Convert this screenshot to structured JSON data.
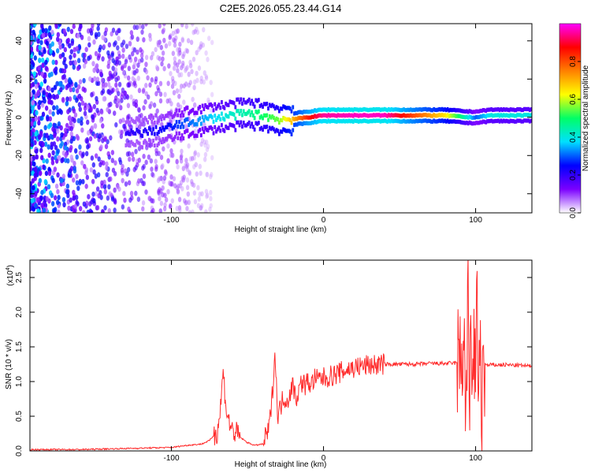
{
  "chart_data": [
    {
      "type": "heatmap",
      "title": "C2E5.2026.055.23.44.G14",
      "xlabel": "Height of straight line (km)",
      "ylabel": "Frequency (Hz)",
      "xlim": [
        -193,
        137
      ],
      "ylim": [
        -50,
        49
      ],
      "xticks": [
        -100,
        0,
        100
      ],
      "xtick_labels": [
        "-100",
        "0",
        "100"
      ],
      "yticks": [
        -40,
        -20,
        0,
        20,
        40
      ],
      "ytick_labels": [
        "-40",
        "-20",
        "0",
        "20",
        "40"
      ],
      "colorbar": {
        "label": "Normalized spectral amplitude",
        "range": [
          0,
          1
        ],
        "ticks": [
          0.0,
          0.2,
          0.4,
          0.6,
          0.8
        ],
        "tick_labels": [
          "0.0",
          "0.2",
          "0.4",
          "0.6",
          "0.8"
        ],
        "colors": [
          "#ffffff",
          "#7b00ff",
          "#0000ff",
          "#00e0ff",
          "#00ff66",
          "#ffff00",
          "#ff8000",
          "#ff0000",
          "#ff00ff"
        ]
      },
      "trace_center_hz": {
        "x": [
          -130,
          -110,
          -90,
          -70,
          -60,
          -50,
          -40,
          -30,
          -20,
          -10,
          0,
          20,
          40,
          60,
          80,
          95,
          100,
          110,
          137
        ],
        "y": [
          -9,
          -7,
          -3,
          0,
          1,
          2,
          1,
          -1,
          -1,
          0,
          1,
          1,
          1,
          1,
          1,
          0,
          0,
          1,
          1
        ]
      },
      "trace_amplitude": {
        "x": [
          -130,
          -110,
          -90,
          -70,
          -60,
          -50,
          -40,
          -30,
          -20,
          -10,
          0,
          20,
          40,
          60,
          80,
          95,
          100,
          110,
          137
        ],
        "y": [
          0.2,
          0.22,
          0.3,
          0.38,
          0.42,
          0.45,
          0.5,
          0.55,
          0.7,
          0.85,
          0.95,
          0.97,
          0.97,
          0.8,
          0.65,
          0.4,
          0.3,
          0.4,
          0.4
        ]
      },
      "colors": {
        "text": "#000000",
        "axis": "#000000"
      }
    },
    {
      "type": "line",
      "xlabel": "Height of straight line (km)",
      "ylabel": "SNR (10 * v/v)",
      "y_multiplier": "(x10",
      "y_multiplier_exp": "4",
      "y_multiplier_close": ")",
      "xlim": [
        -193,
        137
      ],
      "ylim": [
        0,
        2.75
      ],
      "xticks": [
        -100,
        0,
        100
      ],
      "xtick_labels": [
        "-100",
        "0",
        "100"
      ],
      "yticks": [
        0.0,
        0.5,
        1.0,
        1.5,
        2.0,
        2.5
      ],
      "ytick_labels": [
        "0.0",
        "0.5",
        "1.0",
        "1.5",
        "2.0",
        "2.5"
      ],
      "series": [
        {
          "name": "SNR",
          "color": "#ff2a2a",
          "x": [
            -193,
            -180,
            -160,
            -140,
            -120,
            -100,
            -90,
            -80,
            -75,
            -70,
            -68,
            -66,
            -64,
            -62,
            -60,
            -55,
            -50,
            -45,
            -40,
            -36,
            -34,
            -32,
            -30,
            -28,
            -26,
            -24,
            -22,
            -20,
            -18,
            -16,
            -14,
            -12,
            -10,
            -8,
            -6,
            -4,
            -2,
            0,
            5,
            10,
            15,
            20,
            25,
            30,
            35,
            40,
            50,
            60,
            70,
            80,
            90,
            92,
            94,
            95,
            96,
            97,
            98,
            99,
            100,
            101,
            102,
            103,
            104,
            105,
            106,
            108,
            110,
            115,
            120,
            130,
            137
          ],
          "y": [
            0.02,
            0.02,
            0.02,
            0.03,
            0.04,
            0.05,
            0.08,
            0.1,
            0.15,
            0.28,
            0.55,
            1.15,
            0.62,
            0.4,
            0.3,
            0.2,
            0.12,
            0.08,
            0.1,
            0.3,
            0.7,
            1.42,
            0.5,
            0.65,
            0.8,
            0.7,
            0.85,
            0.95,
            0.75,
            0.9,
            1.0,
            0.95,
            1.0,
            0.95,
            1.05,
            1.02,
            1.05,
            1.05,
            1.08,
            1.12,
            1.17,
            1.2,
            1.22,
            1.24,
            1.24,
            1.25,
            1.25,
            1.25,
            1.26,
            1.26,
            1.27,
            1.6,
            0.6,
            2.3,
            0.4,
            2.55,
            0.3,
            2.0,
            0.2,
            2.75,
            0.1,
            1.8,
            0.4,
            1.4,
            1.25,
            1.23,
            1.24,
            1.24,
            1.24,
            1.23,
            1.22
          ]
        }
      ],
      "colors": {
        "line": "#ff2a2a",
        "axis": "#000000"
      }
    }
  ]
}
